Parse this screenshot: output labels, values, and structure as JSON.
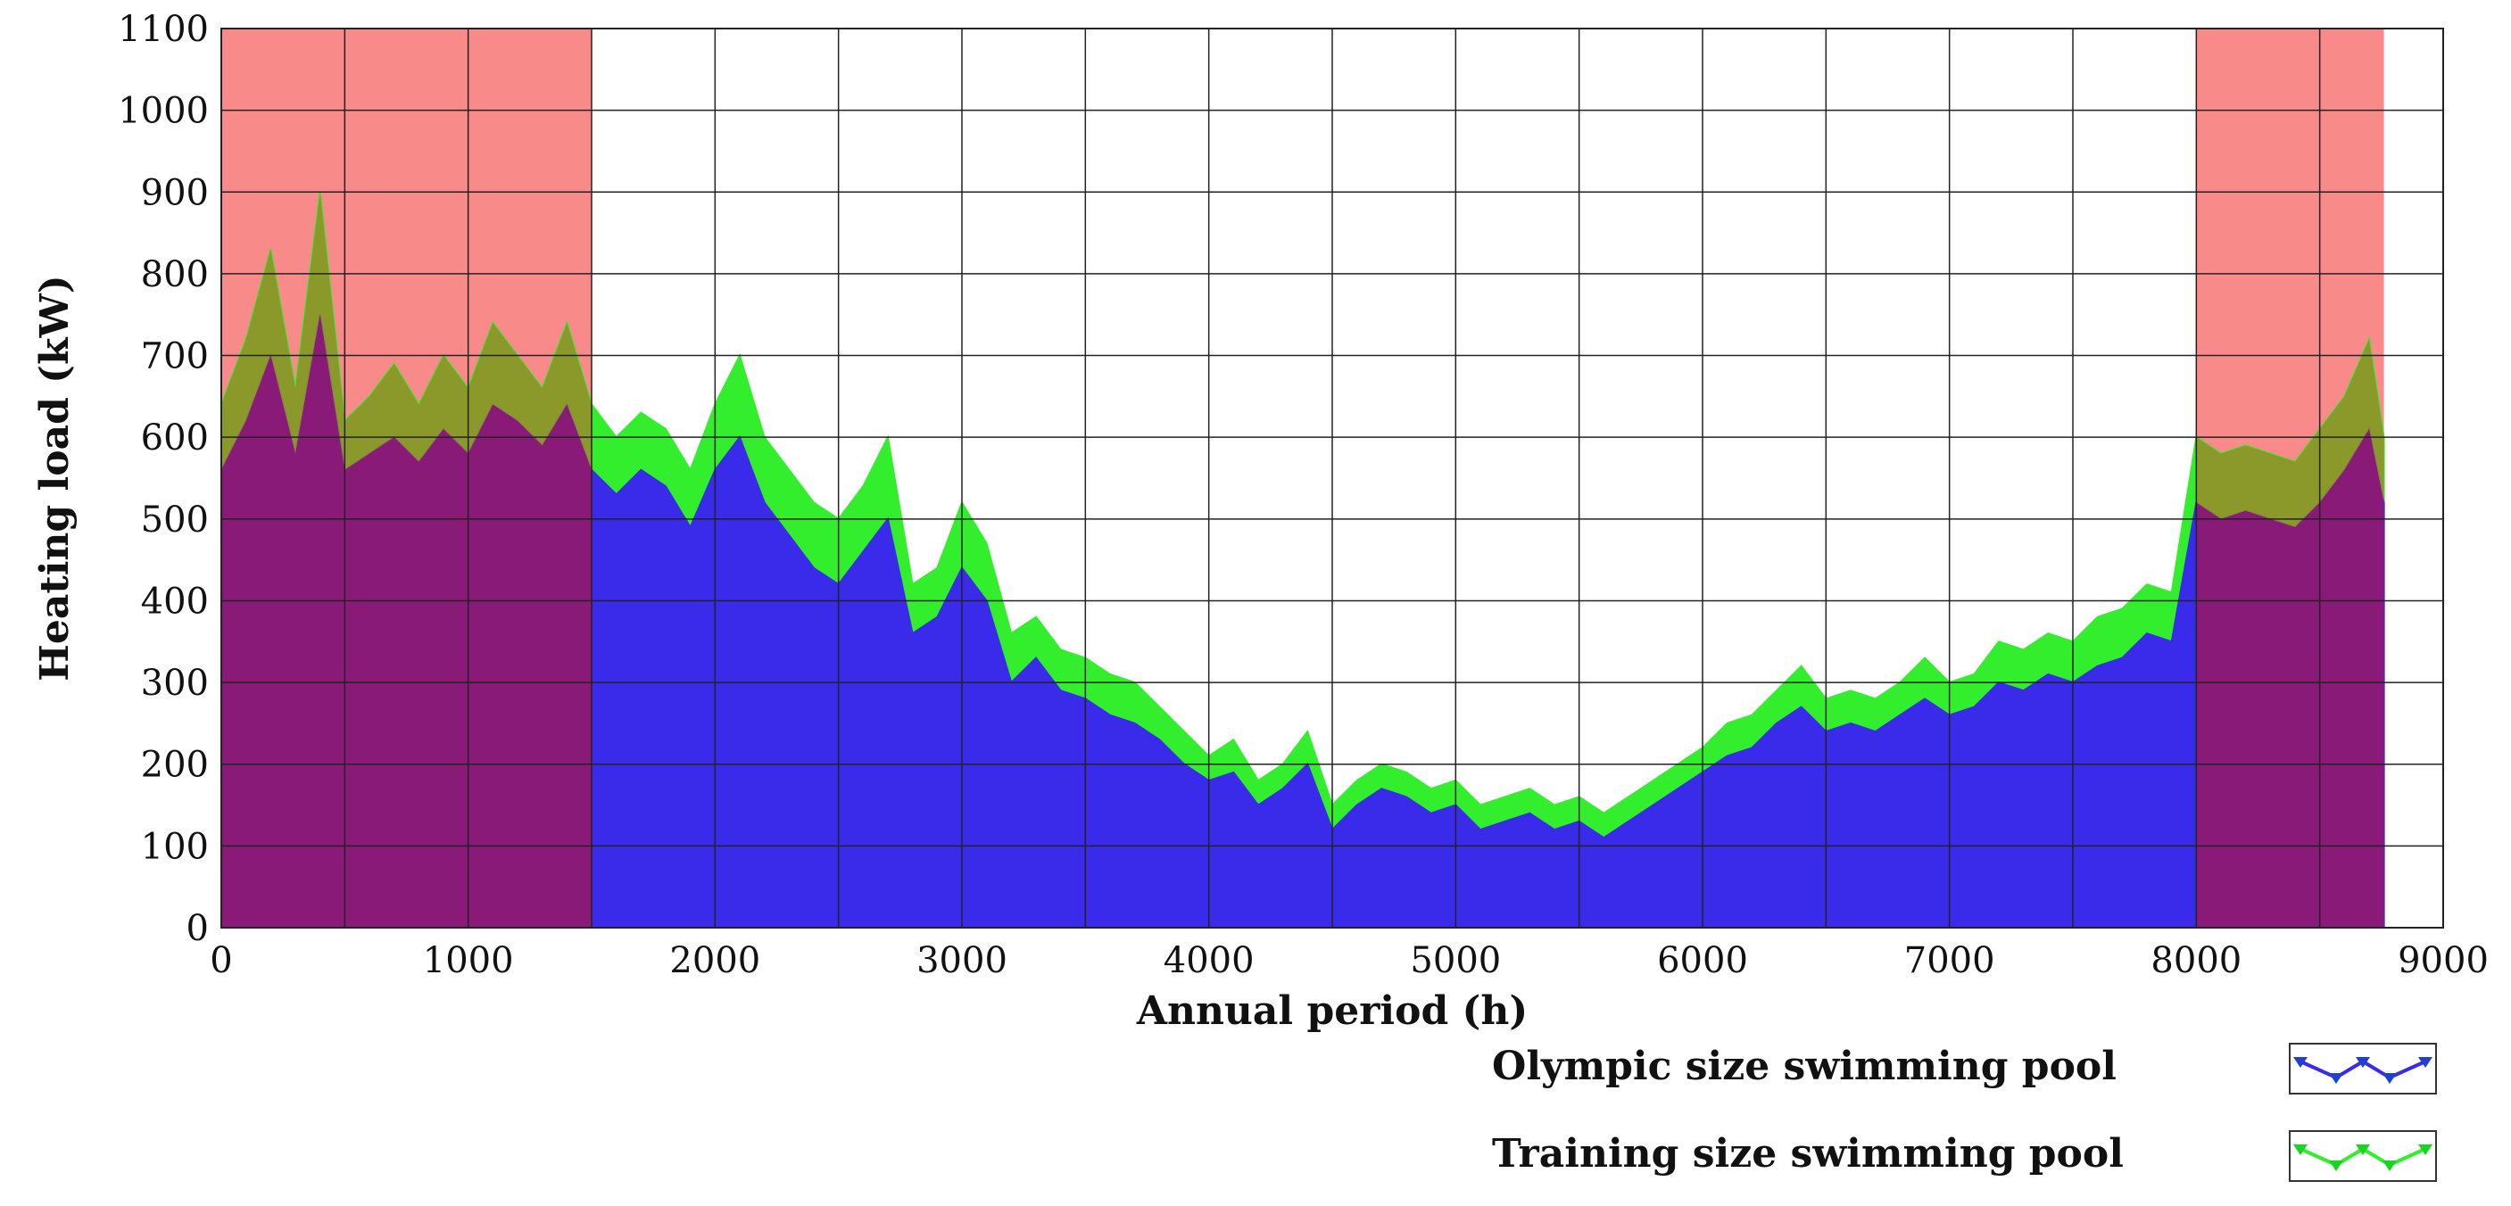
{
  "chart_data": {
    "type": "area",
    "title": "",
    "xlabel": "Annual period (h)",
    "ylabel": "Heating load (kW)",
    "xlim": [
      0,
      9000
    ],
    "ylim": [
      0,
      1100
    ],
    "xticks": [
      0,
      1000,
      2000,
      3000,
      4000,
      5000,
      6000,
      7000,
      8000,
      9000
    ],
    "yticks": [
      0,
      100,
      200,
      300,
      400,
      500,
      600,
      700,
      800,
      900,
      1000,
      1100
    ],
    "grid": true,
    "legend_position": "bottom-right",
    "shaded_periods": [
      {
        "x_start": 0,
        "x_end": 1500,
        "color": "#f98a8a"
      },
      {
        "x_start": 8000,
        "x_end": 8760,
        "color": "#f98a8a"
      }
    ],
    "series": [
      {
        "name": "Olympic size swimming pool",
        "color": "#3a2bea",
        "marker_color": "#1f3fd6",
        "x": [
          0,
          100,
          200,
          300,
          400,
          500,
          600,
          700,
          800,
          900,
          1000,
          1100,
          1200,
          1300,
          1400,
          1500,
          1600,
          1700,
          1800,
          1900,
          2000,
          2100,
          2200,
          2300,
          2400,
          2500,
          2600,
          2700,
          2800,
          2900,
          3000,
          3100,
          3200,
          3300,
          3400,
          3500,
          3600,
          3700,
          3800,
          3900,
          4000,
          4100,
          4200,
          4300,
          4400,
          4500,
          4600,
          4700,
          4800,
          4900,
          5000,
          5100,
          5200,
          5300,
          5400,
          5500,
          5600,
          5700,
          5800,
          5900,
          6000,
          6100,
          6200,
          6300,
          6400,
          6500,
          6600,
          6700,
          6800,
          6900,
          7000,
          7100,
          7200,
          7300,
          7400,
          7500,
          7600,
          7700,
          7800,
          7900,
          8000,
          8100,
          8200,
          8300,
          8400,
          8500,
          8600,
          8700,
          8760
        ],
        "values": [
          560,
          620,
          700,
          580,
          750,
          560,
          580,
          600,
          570,
          610,
          580,
          640,
          620,
          590,
          640,
          560,
          530,
          560,
          540,
          490,
          560,
          600,
          520,
          480,
          440,
          420,
          460,
          500,
          360,
          380,
          440,
          400,
          300,
          330,
          290,
          280,
          260,
          250,
          230,
          200,
          180,
          190,
          150,
          170,
          200,
          120,
          150,
          170,
          160,
          140,
          150,
          120,
          130,
          140,
          120,
          130,
          110,
          130,
          150,
          170,
          190,
          210,
          220,
          250,
          270,
          240,
          250,
          240,
          260,
          280,
          260,
          270,
          300,
          290,
          310,
          300,
          320,
          330,
          360,
          350,
          520,
          500,
          510,
          500,
          490,
          520,
          560,
          610,
          520
        ]
      },
      {
        "name": "Training size swimming pool",
        "color": "#33ee2c",
        "marker_color": "#18d61f",
        "x": [
          0,
          100,
          200,
          300,
          400,
          500,
          600,
          700,
          800,
          900,
          1000,
          1100,
          1200,
          1300,
          1400,
          1500,
          1600,
          1700,
          1800,
          1900,
          2000,
          2100,
          2200,
          2300,
          2400,
          2500,
          2600,
          2700,
          2800,
          2900,
          3000,
          3100,
          3200,
          3300,
          3400,
          3500,
          3600,
          3700,
          3800,
          3900,
          4000,
          4100,
          4200,
          4300,
          4400,
          4500,
          4600,
          4700,
          4800,
          4900,
          5000,
          5100,
          5200,
          5300,
          5400,
          5500,
          5600,
          5700,
          5800,
          5900,
          6000,
          6100,
          6200,
          6300,
          6400,
          6500,
          6600,
          6700,
          6800,
          6900,
          7000,
          7100,
          7200,
          7300,
          7400,
          7500,
          7600,
          7700,
          7800,
          7900,
          8000,
          8100,
          8200,
          8300,
          8400,
          8500,
          8600,
          8700,
          8760
        ],
        "values": [
          640,
          720,
          830,
          660,
          900,
          620,
          650,
          690,
          640,
          700,
          660,
          740,
          700,
          660,
          740,
          640,
          600,
          630,
          610,
          560,
          640,
          700,
          600,
          560,
          520,
          500,
          540,
          600,
          420,
          440,
          520,
          470,
          360,
          380,
          340,
          330,
          310,
          300,
          270,
          240,
          210,
          230,
          180,
          200,
          240,
          150,
          180,
          200,
          190,
          170,
          180,
          150,
          160,
          170,
          150,
          160,
          140,
          160,
          180,
          200,
          220,
          250,
          260,
          290,
          320,
          280,
          290,
          280,
          300,
          330,
          300,
          310,
          350,
          340,
          360,
          350,
          380,
          390,
          420,
          410,
          600,
          580,
          590,
          580,
          570,
          610,
          650,
          720,
          600
        ]
      }
    ]
  }
}
